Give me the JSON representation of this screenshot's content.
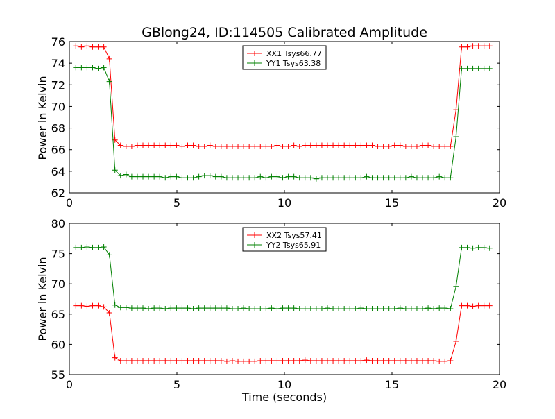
{
  "chart_data": {
    "title": "GBlong24, ID:114505 Calibrated Amplitude",
    "xlabel": "Time (seconds)",
    "x_ticks": [
      "0",
      "5",
      "10",
      "15",
      "20"
    ],
    "panels": [
      {
        "type": "line",
        "ylabel": "Power in Kelvin",
        "xlim": [
          0,
          20
        ],
        "ylim": [
          62,
          76
        ],
        "y_ticks": [
          "62",
          "64",
          "66",
          "68",
          "70",
          "72",
          "74",
          "76"
        ],
        "legend_position": "top-center",
        "grid": false,
        "series": [
          {
            "name": "XX1 Tsys66.77",
            "color": "#ff0000",
            "x": [
              0.3,
              0.56,
              0.82,
              1.08,
              1.34,
              1.6,
              1.86,
              2.12,
              2.38,
              2.64,
              2.9,
              3.16,
              3.42,
              3.68,
              3.94,
              4.2,
              4.46,
              4.72,
              4.98,
              5.24,
              5.5,
              5.76,
              6.02,
              6.28,
              6.54,
              6.8,
              7.06,
              7.32,
              7.58,
              7.84,
              8.1,
              8.36,
              8.62,
              8.88,
              9.14,
              9.4,
              9.66,
              9.92,
              10.18,
              10.44,
              10.7,
              10.96,
              11.22,
              11.48,
              11.74,
              12.0,
              12.26,
              12.52,
              12.78,
              13.04,
              13.3,
              13.56,
              13.82,
              14.08,
              14.34,
              14.6,
              14.86,
              15.12,
              15.38,
              15.64,
              15.9,
              16.16,
              16.42,
              16.68,
              16.94,
              17.2,
              17.46,
              17.72,
              17.98,
              18.24,
              18.5,
              18.76,
              19.02,
              19.28,
              19.54
            ],
            "values": [
              75.6,
              75.5,
              75.6,
              75.5,
              75.5,
              75.5,
              74.4,
              66.9,
              66.4,
              66.3,
              66.3,
              66.4,
              66.4,
              66.4,
              66.4,
              66.4,
              66.4,
              66.4,
              66.4,
              66.3,
              66.4,
              66.4,
              66.3,
              66.3,
              66.4,
              66.3,
              66.3,
              66.3,
              66.3,
              66.3,
              66.3,
              66.3,
              66.3,
              66.3,
              66.3,
              66.3,
              66.4,
              66.3,
              66.3,
              66.4,
              66.3,
              66.4,
              66.4,
              66.4,
              66.4,
              66.4,
              66.4,
              66.4,
              66.4,
              66.4,
              66.4,
              66.4,
              66.4,
              66.4,
              66.3,
              66.3,
              66.3,
              66.4,
              66.4,
              66.3,
              66.3,
              66.3,
              66.4,
              66.4,
              66.3,
              66.3,
              66.3,
              66.3,
              69.7,
              75.5,
              75.5,
              75.6,
              75.6,
              75.6,
              75.6
            ]
          },
          {
            "name": "YY1 Tsys63.38",
            "color": "#008000",
            "x": [
              0.3,
              0.56,
              0.82,
              1.08,
              1.34,
              1.6,
              1.86,
              2.12,
              2.38,
              2.64,
              2.9,
              3.16,
              3.42,
              3.68,
              3.94,
              4.2,
              4.46,
              4.72,
              4.98,
              5.24,
              5.5,
              5.76,
              6.02,
              6.28,
              6.54,
              6.8,
              7.06,
              7.32,
              7.58,
              7.84,
              8.1,
              8.36,
              8.62,
              8.88,
              9.14,
              9.4,
              9.66,
              9.92,
              10.18,
              10.44,
              10.7,
              10.96,
              11.22,
              11.48,
              11.74,
              12.0,
              12.26,
              12.52,
              12.78,
              13.04,
              13.3,
              13.56,
              13.82,
              14.08,
              14.34,
              14.6,
              14.86,
              15.12,
              15.38,
              15.64,
              15.9,
              16.16,
              16.42,
              16.68,
              16.94,
              17.2,
              17.46,
              17.72,
              17.98,
              18.24,
              18.5,
              18.76,
              19.02,
              19.28,
              19.54
            ],
            "values": [
              73.6,
              73.6,
              73.6,
              73.6,
              73.5,
              73.6,
              72.3,
              64.1,
              63.6,
              63.7,
              63.5,
              63.5,
              63.5,
              63.5,
              63.5,
              63.5,
              63.4,
              63.5,
              63.5,
              63.4,
              63.4,
              63.4,
              63.5,
              63.6,
              63.6,
              63.5,
              63.5,
              63.4,
              63.4,
              63.4,
              63.4,
              63.4,
              63.4,
              63.5,
              63.4,
              63.5,
              63.5,
              63.4,
              63.5,
              63.5,
              63.4,
              63.4,
              63.4,
              63.3,
              63.4,
              63.4,
              63.4,
              63.4,
              63.4,
              63.4,
              63.4,
              63.4,
              63.5,
              63.4,
              63.4,
              63.4,
              63.4,
              63.4,
              63.4,
              63.4,
              63.5,
              63.4,
              63.4,
              63.4,
              63.4,
              63.5,
              63.4,
              63.4,
              67.2,
              73.5,
              73.5,
              73.5,
              73.5,
              73.5,
              73.5
            ]
          }
        ]
      },
      {
        "type": "line",
        "ylabel": "Power in Kelvin",
        "xlim": [
          0,
          20
        ],
        "ylim": [
          55,
          80
        ],
        "y_ticks": [
          "55",
          "60",
          "65",
          "70",
          "75",
          "80"
        ],
        "legend_position": "top-center",
        "grid": false,
        "series": [
          {
            "name": "XX2 Tsys57.41",
            "color": "#ff0000",
            "x": [
              0.3,
              0.56,
              0.82,
              1.08,
              1.34,
              1.6,
              1.86,
              2.12,
              2.38,
              2.64,
              2.9,
              3.16,
              3.42,
              3.68,
              3.94,
              4.2,
              4.46,
              4.72,
              4.98,
              5.24,
              5.5,
              5.76,
              6.02,
              6.28,
              6.54,
              6.8,
              7.06,
              7.32,
              7.58,
              7.84,
              8.1,
              8.36,
              8.62,
              8.88,
              9.14,
              9.4,
              9.66,
              9.92,
              10.18,
              10.44,
              10.7,
              10.96,
              11.22,
              11.48,
              11.74,
              12.0,
              12.26,
              12.52,
              12.78,
              13.04,
              13.3,
              13.56,
              13.82,
              14.08,
              14.34,
              14.6,
              14.86,
              15.12,
              15.38,
              15.64,
              15.9,
              16.16,
              16.42,
              16.68,
              16.94,
              17.2,
              17.46,
              17.72,
              17.98,
              18.24,
              18.5,
              18.76,
              19.02,
              19.28,
              19.54
            ],
            "values": [
              66.4,
              66.4,
              66.3,
              66.4,
              66.4,
              66.2,
              65.2,
              57.8,
              57.3,
              57.3,
              57.3,
              57.3,
              57.3,
              57.3,
              57.3,
              57.3,
              57.3,
              57.3,
              57.3,
              57.3,
              57.3,
              57.3,
              57.3,
              57.3,
              57.3,
              57.3,
              57.3,
              57.2,
              57.3,
              57.2,
              57.2,
              57.2,
              57.2,
              57.3,
              57.3,
              57.3,
              57.3,
              57.3,
              57.3,
              57.3,
              57.3,
              57.4,
              57.3,
              57.3,
              57.3,
              57.3,
              57.3,
              57.3,
              57.3,
              57.3,
              57.3,
              57.3,
              57.4,
              57.3,
              57.3,
              57.3,
              57.3,
              57.3,
              57.3,
              57.3,
              57.3,
              57.3,
              57.3,
              57.3,
              57.3,
              57.2,
              57.2,
              57.3,
              60.5,
              66.4,
              66.4,
              66.3,
              66.4,
              66.4,
              66.4
            ]
          },
          {
            "name": "YY2 Tsys65.91",
            "color": "#008000",
            "x": [
              0.3,
              0.56,
              0.82,
              1.08,
              1.34,
              1.6,
              1.86,
              2.12,
              2.38,
              2.64,
              2.9,
              3.16,
              3.42,
              3.68,
              3.94,
              4.2,
              4.46,
              4.72,
              4.98,
              5.24,
              5.5,
              5.76,
              6.02,
              6.28,
              6.54,
              6.8,
              7.06,
              7.32,
              7.58,
              7.84,
              8.1,
              8.36,
              8.62,
              8.88,
              9.14,
              9.4,
              9.66,
              9.92,
              10.18,
              10.44,
              10.7,
              10.96,
              11.22,
              11.48,
              11.74,
              12.0,
              12.26,
              12.52,
              12.78,
              13.04,
              13.3,
              13.56,
              13.82,
              14.08,
              14.34,
              14.6,
              14.86,
              15.12,
              15.38,
              15.64,
              15.9,
              16.16,
              16.42,
              16.68,
              16.94,
              17.2,
              17.46,
              17.72,
              17.98,
              18.24,
              18.5,
              18.76,
              19.02,
              19.28,
              19.54
            ],
            "values": [
              76.0,
              76.0,
              76.1,
              76.0,
              76.0,
              76.1,
              74.8,
              66.5,
              66.1,
              66.1,
              66.0,
              66.0,
              66.0,
              65.9,
              66.0,
              66.0,
              65.9,
              66.0,
              66.0,
              66.0,
              66.0,
              65.9,
              66.0,
              66.0,
              66.0,
              66.0,
              66.0,
              66.0,
              65.9,
              65.9,
              66.0,
              65.9,
              65.9,
              65.9,
              65.9,
              66.0,
              65.9,
              66.0,
              66.0,
              66.0,
              65.9,
              65.9,
              65.9,
              65.9,
              65.9,
              66.0,
              65.9,
              65.9,
              65.9,
              65.9,
              65.9,
              66.0,
              65.9,
              65.9,
              65.9,
              65.9,
              65.9,
              65.9,
              66.0,
              65.9,
              65.9,
              65.9,
              65.9,
              66.0,
              65.9,
              66.0,
              66.0,
              65.9,
              69.6,
              76.0,
              76.0,
              75.9,
              76.0,
              76.0,
              75.9
            ]
          }
        ]
      }
    ]
  }
}
